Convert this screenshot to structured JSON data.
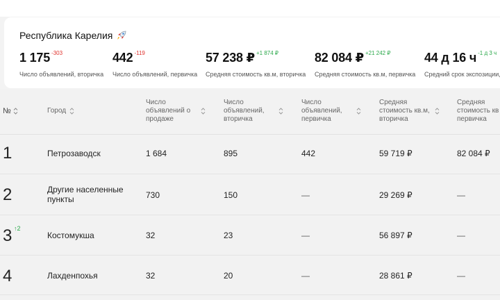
{
  "region": {
    "title": "Республика Карелия",
    "icon": "rocket-icon"
  },
  "metrics": [
    {
      "value": "1 175",
      "delta": "-303",
      "delta_type": "negative",
      "label": "Число объявлений, вторичка"
    },
    {
      "value": "442",
      "delta": "-119",
      "delta_type": "negative",
      "label": "Число объявлений, первичка"
    },
    {
      "value": "57 238 ₽",
      "delta": "+1 874 ₽",
      "delta_type": "positive",
      "label": "Средняя стоимость кв.м, вторичка"
    },
    {
      "value": "82 084 ₽",
      "delta": "+21 242 ₽",
      "delta_type": "positive",
      "label": "Средняя стоимость кв.м, первичка"
    },
    {
      "value": "44 д 16 ч",
      "delta": "-1 д 3 ч",
      "delta_type": "positive",
      "label": "Средний срок экспозиции, вт"
    }
  ],
  "table": {
    "headers": {
      "rank": "№",
      "city": "Город",
      "total": [
        "Число",
        "объявлений о",
        "продаже"
      ],
      "secondary": [
        "Число",
        "объявлений,",
        "вторичка"
      ],
      "primary": [
        "Число",
        "объявлений,",
        "первичка"
      ],
      "avg_secondary": [
        "Средняя",
        "стоимость кв.м,",
        "вторичка"
      ],
      "avg_primary": [
        "Средняя",
        "стоимость кв",
        "первичка"
      ]
    },
    "rows": [
      {
        "rank": "1",
        "rank_change": "",
        "city": [
          "Петрозаводск"
        ],
        "total": "1 684",
        "secondary": "895",
        "primary": "442",
        "avg_secondary": "59 719 ₽",
        "avg_primary": "82 084 ₽"
      },
      {
        "rank": "2",
        "rank_change": "",
        "city": [
          "Другие населенные",
          "пункты"
        ],
        "total": "730",
        "secondary": "150",
        "primary": "—",
        "avg_secondary": "29 269 ₽",
        "avg_primary": "—"
      },
      {
        "rank": "3",
        "rank_change": "↑2",
        "city": [
          "Костомукша"
        ],
        "total": "32",
        "secondary": "23",
        "primary": "—",
        "avg_secondary": "56 897 ₽",
        "avg_primary": "—"
      },
      {
        "rank": "4",
        "rank_change": "",
        "city": [
          "Лахденпохья"
        ],
        "total": "32",
        "secondary": "20",
        "primary": "—",
        "avg_secondary": "28 861 ₽",
        "avg_primary": "—"
      }
    ]
  },
  "colors": {
    "negative": "#e0342f",
    "positive": "#2aa84a",
    "card": "#ffffff",
    "background": "#f2f2f2"
  }
}
